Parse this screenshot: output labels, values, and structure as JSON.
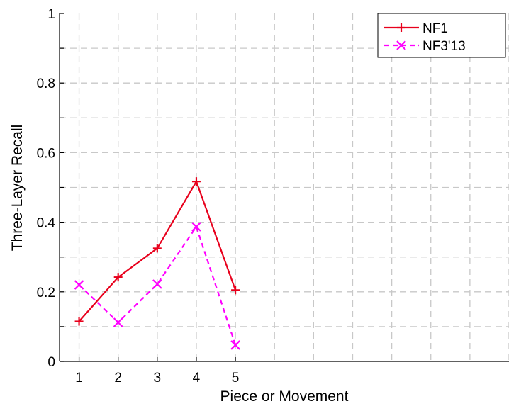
{
  "chart_data": {
    "type": "line",
    "title": "",
    "xlabel": "Piece or Movement",
    "ylabel": "Three-Layer Recall",
    "xlim": [
      0.5,
      12.0
    ],
    "ylim": [
      0,
      1
    ],
    "xticks": [
      "1",
      "2",
      "3",
      "4",
      "5"
    ],
    "yticks": [
      "0",
      "0.2",
      "0.4",
      "0.6",
      "0.8",
      "1"
    ],
    "grid": true,
    "legend_position": "top-right",
    "series": [
      {
        "name": "NF1",
        "color": "#e8001c",
        "line_style": "solid",
        "marker": "plus",
        "x": [
          1,
          2,
          3,
          4,
          5
        ],
        "values": [
          0.115,
          0.242,
          0.325,
          0.517,
          0.205
        ]
      },
      {
        "name": "NF3'13",
        "color": "#ff00ff",
        "line_style": "dashed",
        "marker": "x",
        "x": [
          1,
          2,
          3,
          4,
          5
        ],
        "values": [
          0.22,
          0.112,
          0.222,
          0.387,
          0.047
        ]
      }
    ]
  }
}
